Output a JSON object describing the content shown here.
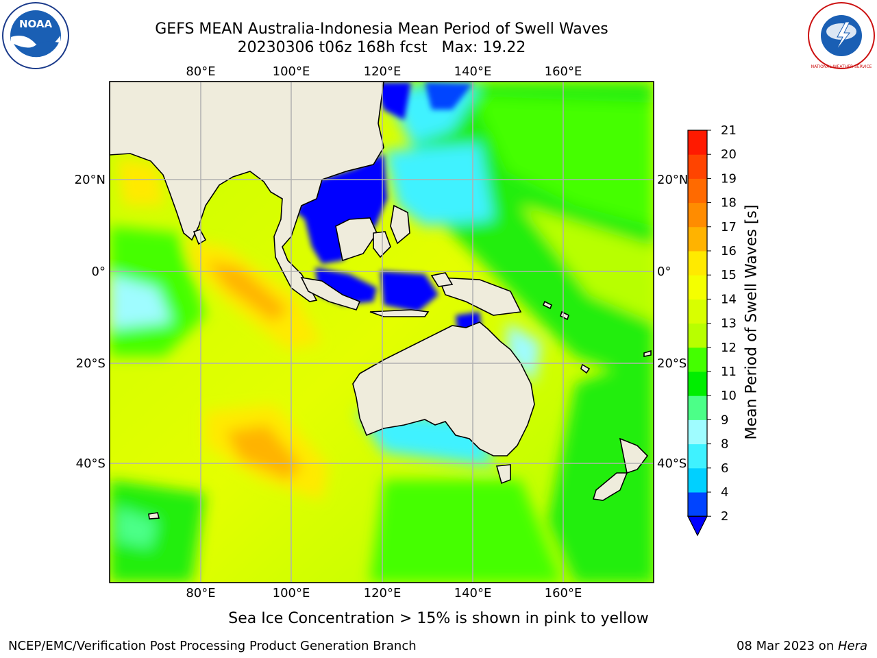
{
  "header": {
    "title_line1": "GEFS MEAN Australia-Indonesia Mean Period of Swell Waves",
    "title_line2": "20230306 t06z 168h fcst   Max: 19.22"
  },
  "map": {
    "lon_labels": [
      "80°E",
      "100°E",
      "120°E",
      "140°E",
      "160°E"
    ],
    "lat_labels": [
      "20°N",
      "0°",
      "20°S",
      "40°S"
    ],
    "land_color": "#efecdc"
  },
  "colorbar": {
    "title": "Mean Period of Swell Waves [s]",
    "ticks": [
      "2",
      "4",
      "6",
      "8",
      "9",
      "10",
      "11",
      "12",
      "13",
      "14",
      "15",
      "16",
      "17",
      "18",
      "19",
      "20",
      "21"
    ],
    "colors": [
      "#0044ff",
      "#00d0ff",
      "#3ff2ff",
      "#9ffcff",
      "#4cff88",
      "#00ee00",
      "#44ff00",
      "#b8ff00",
      "#d8ff00",
      "#f4ff00",
      "#ffea00",
      "#ffb300",
      "#ff8c00",
      "#ff6a00",
      "#ff4400",
      "#ff1a00"
    ],
    "extend_color": "#0000ff"
  },
  "notes": {
    "ice_note": "Sea Ice Concentration > 15% is shown in pink to yellow"
  },
  "footer": {
    "left": "NCEP/EMC/Verification Post Processing Product Generation Branch",
    "date": "08 Mar 2023 on ",
    "machine": "Hera"
  },
  "logos": {
    "noaa_text": "NOAA",
    "nws_text": "NATIONAL WEATHER SERVICE"
  }
}
